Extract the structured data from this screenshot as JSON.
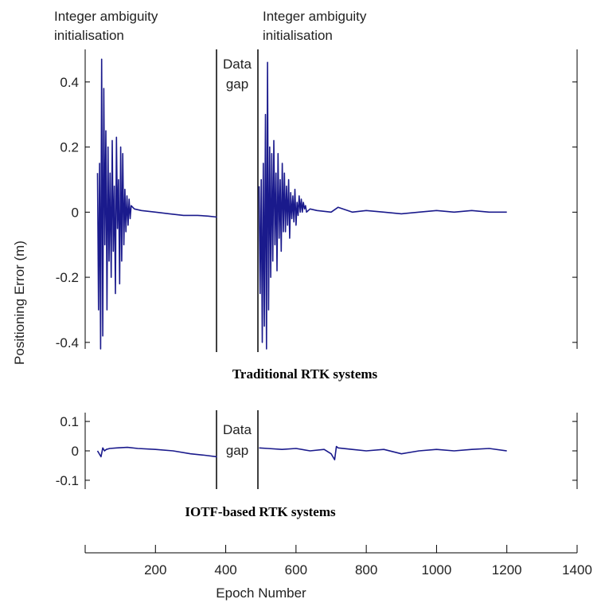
{
  "figure": {
    "annotation_init_left": [
      "Integer ambiguity",
      "initialisation"
    ],
    "annotation_init_right": [
      "Integer ambiguity",
      "initialisation"
    ],
    "gap_label_top": [
      "Data",
      "gap"
    ],
    "gap_label_bottom": [
      "Data",
      "gap"
    ],
    "ylabel": "Positioning Error (m)",
    "xlabel": "Epoch Number",
    "series_color": "#1a1a8c"
  },
  "chart_data": [
    {
      "type": "line",
      "title": "Traditional RTK systems",
      "ylim": [
        -0.42,
        0.5
      ],
      "yticks": [
        0.4,
        0.2,
        0,
        -0.2,
        -0.4
      ],
      "ytick_labels": [
        "0.4",
        "0.2",
        "0",
        "-0.2",
        "-0.4"
      ],
      "xlim": [
        0,
        1400
      ],
      "data_gap": [
        375,
        495
      ],
      "segments": [
        {
          "x": [
            35,
            38,
            41,
            44,
            47,
            50,
            53,
            56,
            59,
            62,
            65,
            68,
            71,
            74,
            77,
            80,
            83,
            86,
            89,
            92,
            95,
            98,
            101,
            104,
            107,
            110,
            113,
            116,
            119,
            122,
            125,
            128,
            131,
            140,
            160,
            200,
            240,
            280,
            320,
            350,
            375
          ],
          "y": [
            0.12,
            -0.3,
            0.15,
            -0.42,
            0.47,
            -0.38,
            0.38,
            -0.1,
            0.25,
            -0.3,
            0.2,
            -0.15,
            0.12,
            -0.2,
            0.22,
            -0.12,
            0.08,
            -0.25,
            0.23,
            -0.05,
            0.1,
            -0.22,
            0.2,
            -0.15,
            0.18,
            -0.1,
            0.07,
            -0.06,
            0.05,
            -0.04,
            0.04,
            -0.02,
            0.02,
            0.01,
            0.005,
            0.0,
            -0.005,
            -0.01,
            -0.01,
            -0.012,
            -0.015
          ]
        },
        {
          "x": [
            495,
            498,
            501,
            504,
            507,
            510,
            513,
            516,
            519,
            522,
            525,
            528,
            531,
            534,
            537,
            540,
            543,
            546,
            549,
            552,
            555,
            558,
            561,
            564,
            567,
            570,
            573,
            576,
            579,
            582,
            585,
            588,
            591,
            594,
            597,
            600,
            603,
            606,
            609,
            612,
            615,
            618,
            621,
            624,
            627,
            630,
            640,
            660,
            700,
            720,
            760,
            800,
            850,
            900,
            950,
            1000,
            1050,
            1100,
            1150,
            1200
          ],
          "y": [
            0.08,
            -0.25,
            0.1,
            -0.4,
            0.15,
            -0.35,
            0.3,
            -0.42,
            0.46,
            -0.3,
            0.2,
            -0.2,
            0.18,
            -0.15,
            0.22,
            -0.1,
            0.12,
            -0.18,
            0.18,
            -0.08,
            0.1,
            -0.12,
            0.15,
            -0.06,
            0.12,
            -0.06,
            0.08,
            -0.04,
            0.1,
            -0.08,
            0.06,
            -0.02,
            0.05,
            -0.03,
            0.07,
            -0.04,
            0.03,
            -0.01,
            0.05,
            0.0,
            0.04,
            0.0,
            0.03,
            0.01,
            0.02,
            0.0,
            0.01,
            0.005,
            0.0,
            0.015,
            0.0,
            0.005,
            0.0,
            -0.005,
            0.0,
            0.005,
            0.0,
            0.005,
            0.0,
            0.0
          ]
        }
      ]
    },
    {
      "type": "line",
      "title": "IOTF-based RTK systems",
      "ylim": [
        -0.13,
        0.13
      ],
      "yticks": [
        0.1,
        0,
        -0.1
      ],
      "ytick_labels": [
        "0.1",
        "0",
        "-0.1"
      ],
      "xlim": [
        0,
        1400
      ],
      "xticks": [
        200,
        400,
        600,
        800,
        1000,
        1200,
        1400
      ],
      "xtick_labels": [
        "200",
        "400",
        "600",
        "800",
        "1000",
        "1200",
        "1400"
      ],
      "data_gap": [
        375,
        495
      ],
      "segments": [
        {
          "x": [
            35,
            45,
            50,
            55,
            60,
            70,
            90,
            120,
            150,
            200,
            250,
            300,
            340,
            375
          ],
          "y": [
            0.0,
            -0.02,
            0.01,
            0.0,
            0.005,
            0.008,
            0.01,
            0.012,
            0.008,
            0.005,
            0.0,
            -0.01,
            -0.015,
            -0.02
          ]
        },
        {
          "x": [
            495,
            520,
            560,
            600,
            640,
            680,
            700,
            710,
            715,
            720,
            760,
            800,
            850,
            900,
            950,
            1000,
            1050,
            1100,
            1150,
            1200
          ],
          "y": [
            0.01,
            0.008,
            0.005,
            0.008,
            0.0,
            0.005,
            -0.01,
            -0.03,
            0.015,
            0.01,
            0.005,
            0.0,
            0.005,
            -0.01,
            0.0,
            0.005,
            0.0,
            0.005,
            0.008,
            0.0
          ]
        }
      ]
    }
  ]
}
